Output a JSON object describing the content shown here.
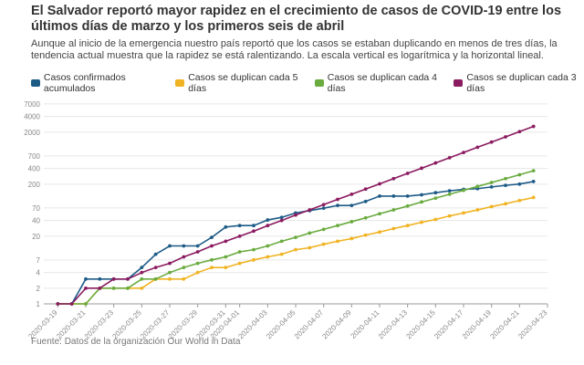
{
  "chart_data": {
    "type": "line",
    "title": "El Salvador reportó mayor rapidez en el crecimiento de casos de COVID-19 entre los últimos días de marzo y los primeros seis de abril",
    "subtitle": "Aunque al inicio de la emergencia nuestro país reportó que los casos se estaban duplicando en menos de tres días, la tendencia actual muestra que la rapidez se está ralentizando. La escala vertical es logarítmica y la horizontal lineal.",
    "source": "Fuente: Datos de la organización Our World in Data",
    "x": [
      "2020-03-19",
      "2020-03-20",
      "2020-03-21",
      "2020-03-22",
      "2020-03-23",
      "2020-03-24",
      "2020-03-25",
      "2020-03-26",
      "2020-03-27",
      "2020-03-28",
      "2020-03-29",
      "2020-03-30",
      "2020-03-31",
      "2020-04-01",
      "2020-04-02",
      "2020-04-03",
      "2020-04-04",
      "2020-04-05",
      "2020-04-06",
      "2020-04-07",
      "2020-04-08",
      "2020-04-09",
      "2020-04-10",
      "2020-04-11",
      "2020-04-12",
      "2020-04-13",
      "2020-04-14",
      "2020-04-15",
      "2020-04-16",
      "2020-04-17",
      "2020-04-18",
      "2020-04-19",
      "2020-04-20",
      "2020-04-21",
      "2020-04-22"
    ],
    "series": [
      {
        "name": "Casos confirmados acumulados",
        "color": "#1d5b87",
        "values": [
          1,
          1,
          3,
          3,
          3,
          3,
          5,
          9,
          13,
          13,
          13,
          19,
          30,
          32,
          32,
          41,
          46,
          56,
          62,
          69,
          78,
          78,
          93,
          118,
          118,
          118,
          125,
          137,
          149,
          159,
          164,
          177,
          190,
          201,
          225
        ]
      },
      {
        "name": "Casos se duplican cada 5 días",
        "color": "#f0b323",
        "values": [
          1,
          1,
          1,
          2,
          2,
          2,
          2,
          3,
          3,
          3,
          4,
          5,
          5,
          6,
          7,
          8,
          9,
          11,
          12,
          14,
          16,
          18,
          21,
          24,
          28,
          32,
          37,
          42,
          49,
          56,
          64,
          74,
          84,
          97,
          111
        ]
      },
      {
        "name": "Casos se duplican cada 4 días",
        "color": "#6aab3f",
        "values": [
          1,
          1,
          1,
          2,
          2,
          2,
          3,
          3,
          4,
          5,
          6,
          7,
          8,
          10,
          11,
          13,
          16,
          19,
          23,
          27,
          32,
          38,
          45,
          54,
          64,
          76,
          91,
          108,
          128,
          152,
          181,
          215,
          256,
          304,
          362
        ]
      },
      {
        "name": "Casos se duplican cada 3 días",
        "color": "#8b1b60",
        "values": [
          1,
          1,
          2,
          2,
          3,
          3,
          4,
          5,
          6,
          8,
          10,
          13,
          16,
          20,
          25,
          32,
          40,
          51,
          64,
          81,
          102,
          128,
          161,
          203,
          256,
          323,
          406,
          512,
          645,
          813,
          1024,
          1290,
          1625,
          2048,
          2580
        ]
      }
    ],
    "xlim": [
      "2020-03-18",
      "2020-04-23"
    ],
    "xticks": [
      "2020-03-19",
      "2020-03-21",
      "2020-03-23",
      "2020-03-25",
      "2020-03-27",
      "2020-03-29",
      "2020-03-31",
      "2020-04-01",
      "2020-04-03",
      "2020-04-05",
      "2020-04-07",
      "2020-04-09",
      "2020-04-11",
      "2020-04-13",
      "2020-04-15",
      "2020-04-17",
      "2020-04-19",
      "2020-04-21",
      "2020-04-23"
    ],
    "ylim": [
      1,
      10000
    ],
    "yticks": [
      1,
      2,
      4,
      7,
      20,
      40,
      70,
      200,
      400,
      700,
      2000,
      4000,
      7000
    ],
    "log_scale": true,
    "grid": true
  }
}
